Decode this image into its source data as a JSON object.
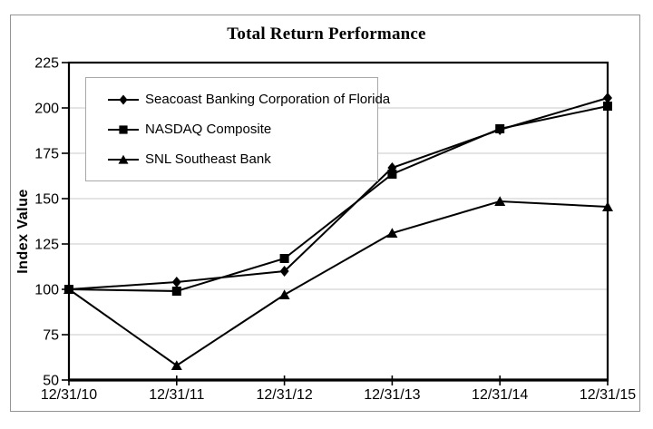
{
  "chart_data": {
    "type": "line",
    "title": "Total Return Performance",
    "xlabel": "",
    "ylabel": "Index Value",
    "x_categories": [
      "12/31/10",
      "12/31/11",
      "12/31/12",
      "12/31/13",
      "12/31/14",
      "12/31/15"
    ],
    "y_ticks": [
      50,
      75,
      100,
      125,
      150,
      175,
      200,
      225
    ],
    "ylim": [
      50,
      225
    ],
    "grid": "horizontal-only",
    "legend_position": "inside-top-left",
    "series": [
      {
        "name": "Seacoast Banking Corporation of Florida",
        "marker": "diamond",
        "values": [
          100,
          104,
          110,
          167,
          188,
          205.5
        ]
      },
      {
        "name": "NASDAQ Composite",
        "marker": "square",
        "values": [
          100,
          99,
          117,
          163.5,
          188.5,
          201
        ]
      },
      {
        "name": "SNL Southeast Bank",
        "marker": "triangle",
        "values": [
          100,
          58,
          97,
          131,
          148.5,
          145.5
        ]
      }
    ]
  },
  "style": {
    "line_color": "#000000",
    "grid_color": "#c9c9c9",
    "frame_color": "#949494",
    "legend_border_color": "#a8a8a8",
    "text_color": "#000000"
  }
}
